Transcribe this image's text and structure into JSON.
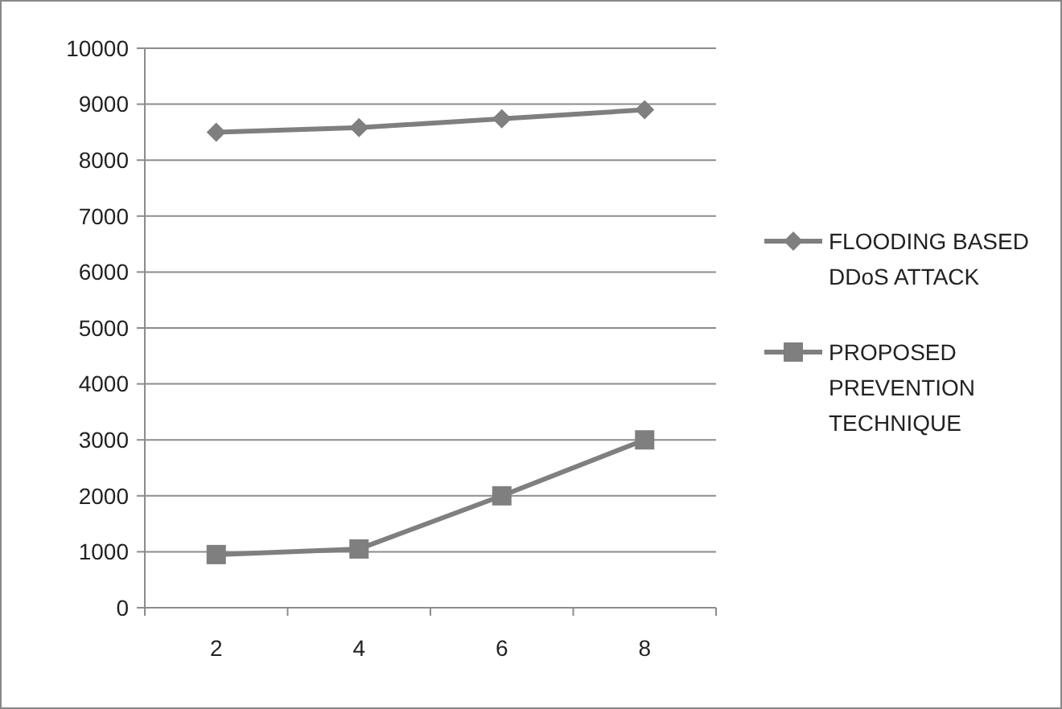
{
  "chart_data": {
    "type": "line",
    "categories": [
      "2",
      "4",
      "6",
      "8"
    ],
    "series": [
      {
        "name": "FLOODING BASED DDoS ATTACK",
        "color": "#7f7f7f",
        "marker": "diamond",
        "values": [
          8500,
          8580,
          8740,
          8900
        ]
      },
      {
        "name": "PROPOSED PREVENTION TECHNIQUE",
        "color": "#7f7f7f",
        "marker": "square",
        "values": [
          950,
          1050,
          2000,
          3000
        ]
      }
    ],
    "ylim": [
      0,
      10000
    ],
    "yticks": [
      0,
      1000,
      2000,
      3000,
      4000,
      5000,
      6000,
      7000,
      8000,
      9000,
      10000
    ],
    "grid": "y",
    "legend": "right"
  }
}
